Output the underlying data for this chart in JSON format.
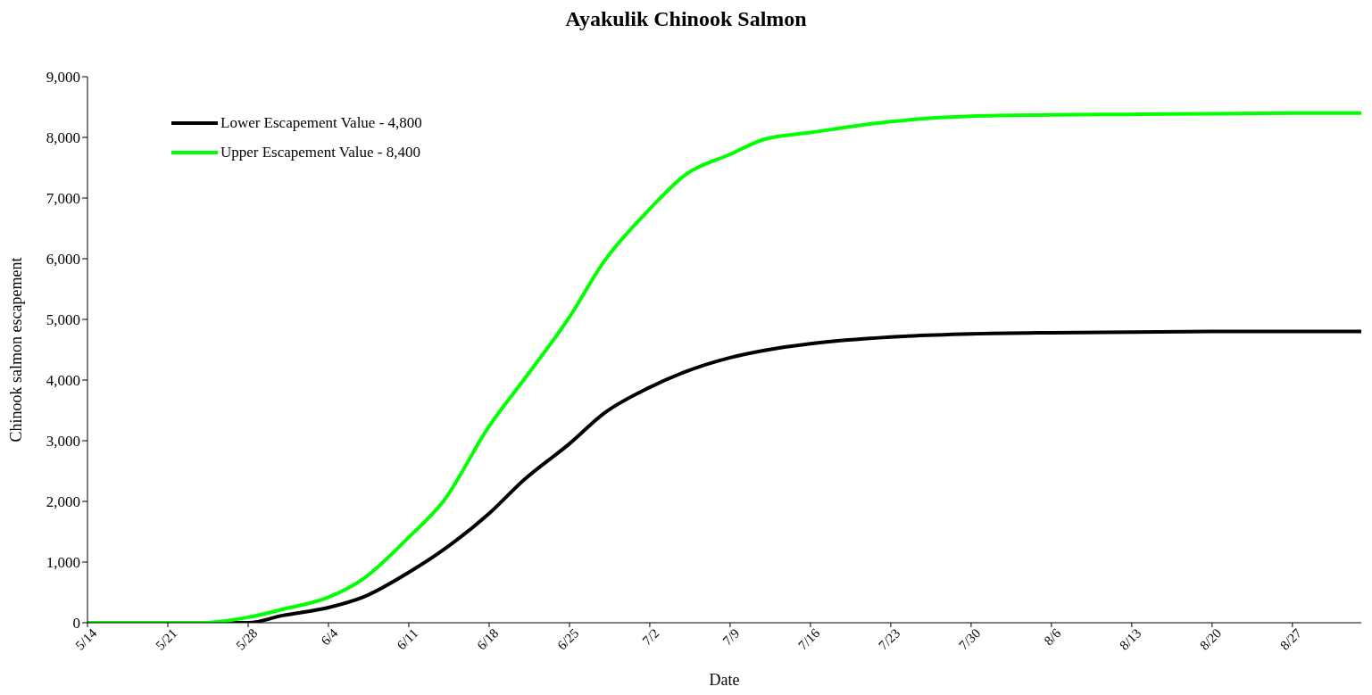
{
  "chart_data": {
    "type": "line",
    "title": "Ayakulik Chinook Salmon",
    "xlabel": "Date",
    "ylabel": "Chinook salmon escapement",
    "x": [
      "--05-14",
      "--05-21",
      "--05-24",
      "--05-26",
      "--05-28",
      "--05-31",
      "--06-04",
      "--06-07",
      "--06-11",
      "--06-14",
      "--06-18",
      "--06-21",
      "--06-25",
      "--06-28",
      "--07-02",
      "--07-05",
      "--07-09",
      "--07-12",
      "--07-16",
      "--07-23",
      "--07-30",
      "--08-06",
      "--08-13",
      "--08-20",
      "--08-27",
      "--09-02"
    ],
    "series": [
      {
        "name": "Lower Escapement Value - 4,800",
        "color": "#000000",
        "values": [
          0,
          0,
          0,
          0,
          0,
          120,
          250,
          420,
          830,
          1200,
          1800,
          2350,
          2950,
          3450,
          3880,
          4130,
          4370,
          4490,
          4600,
          4710,
          4760,
          4780,
          4790,
          4800,
          4800,
          4800
        ]
      },
      {
        "name": "Upper Escapement Value - 8,400",
        "color": "#00ff00",
        "values": [
          0,
          0,
          0,
          30,
          90,
          220,
          420,
          720,
          1410,
          2000,
          3240,
          4000,
          5040,
          5950,
          6820,
          7370,
          7720,
          7970,
          8080,
          8260,
          8350,
          8370,
          8380,
          8390,
          8400,
          8400
        ]
      }
    ],
    "xlim": [
      "--05-14",
      "--09-02"
    ],
    "xticks": [
      {
        "value": "--05-14",
        "label": "5/14"
      },
      {
        "value": "--05-21",
        "label": "5/21"
      },
      {
        "value": "--05-28",
        "label": "5/28"
      },
      {
        "value": "--06-04",
        "label": "6/4"
      },
      {
        "value": "--06-11",
        "label": "6/11"
      },
      {
        "value": "--06-18",
        "label": "6/18"
      },
      {
        "value": "--06-25",
        "label": "6/25"
      },
      {
        "value": "--07-02",
        "label": "7/2"
      },
      {
        "value": "--07-09",
        "label": "7/9"
      },
      {
        "value": "--07-16",
        "label": "7/16"
      },
      {
        "value": "--07-23",
        "label": "7/23"
      },
      {
        "value": "--07-30",
        "label": "7/30"
      },
      {
        "value": "--08-06",
        "label": "8/6"
      },
      {
        "value": "--08-13",
        "label": "8/13"
      },
      {
        "value": "--08-20",
        "label": "8/20"
      },
      {
        "value": "--08-27",
        "label": "8/27"
      }
    ],
    "ylim": [
      0,
      9000
    ],
    "yticks": [
      {
        "value": 0,
        "label": "0"
      },
      {
        "value": 1000,
        "label": "1,000"
      },
      {
        "value": 2000,
        "label": "2,000"
      },
      {
        "value": 3000,
        "label": "3,000"
      },
      {
        "value": 4000,
        "label": "4,000"
      },
      {
        "value": 5000,
        "label": "5,000"
      },
      {
        "value": 6000,
        "label": "6,000"
      },
      {
        "value": 7000,
        "label": "7,000"
      },
      {
        "value": 8000,
        "label": "8,000"
      },
      {
        "value": 9000,
        "label": "9,000"
      }
    ],
    "grid": false,
    "legend": "top left",
    "marker": "none",
    "line_style": "solid"
  }
}
